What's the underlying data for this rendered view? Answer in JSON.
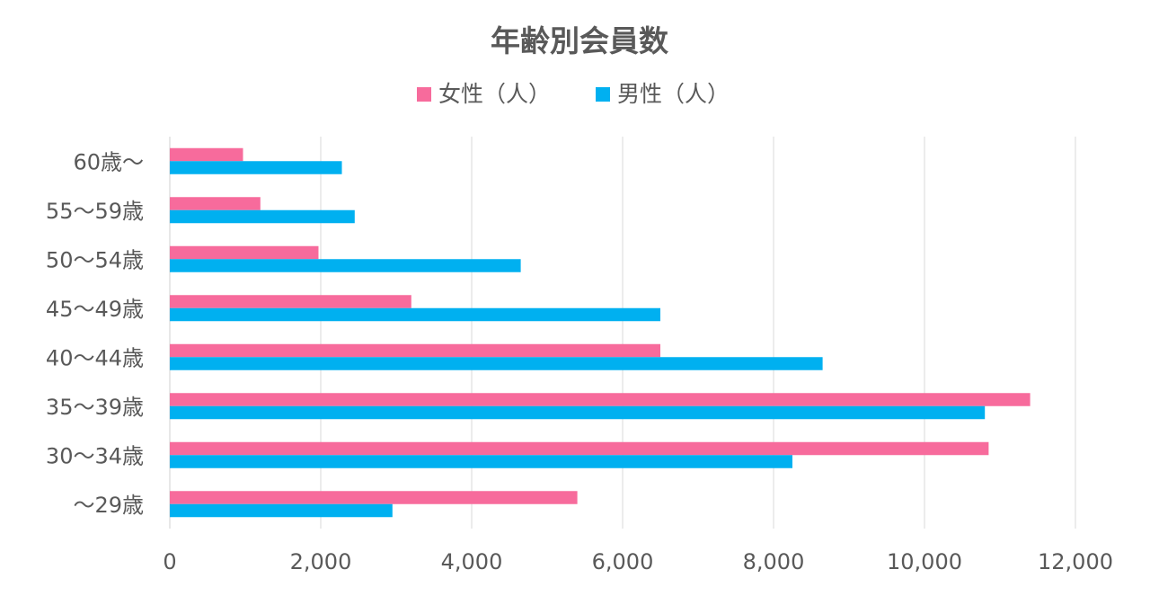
{
  "chart_data": {
    "type": "bar",
    "orientation": "horizontal",
    "title": "年齢別会員数",
    "categories": [
      "60歳～",
      "55～59歳",
      "50～54歳",
      "45～49歳",
      "40～44歳",
      "35～39歳",
      "30～34歳",
      "～29歳"
    ],
    "series": [
      {
        "name": "女性（人）",
        "color": "#F76B9C",
        "values": [
          970,
          1200,
          1970,
          3200,
          6500,
          11400,
          10850,
          5400
        ]
      },
      {
        "name": "男性（人）",
        "color": "#00B0F0",
        "values": [
          2280,
          2450,
          4650,
          6500,
          8650,
          10800,
          8250,
          2950
        ]
      }
    ],
    "xlim": [
      0,
      12000
    ],
    "x_ticks": [
      0,
      2000,
      4000,
      6000,
      8000,
      10000,
      12000
    ],
    "x_tick_labels": [
      "0",
      "2,000",
      "4,000",
      "6,000",
      "8,000",
      "10,000",
      "12,000"
    ],
    "xlabel": "",
    "ylabel": "",
    "grid": "vertical",
    "legend_position": "top"
  }
}
